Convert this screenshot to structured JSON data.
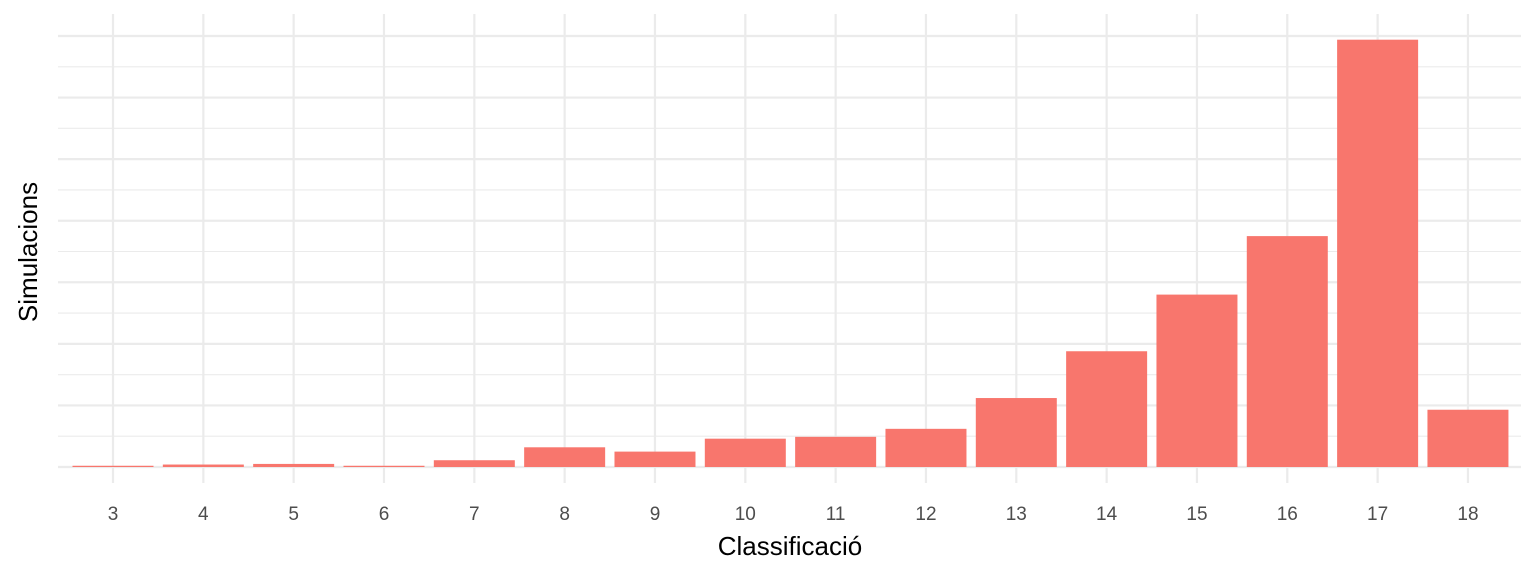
{
  "chart_data": {
    "type": "bar",
    "title": "",
    "xlabel": "Classificació",
    "ylabel": "Simulacions",
    "categories": [
      "3",
      "4",
      "5",
      "6",
      "7",
      "8",
      "9",
      "10",
      "11",
      "12",
      "13",
      "14",
      "15",
      "16",
      "17",
      "18"
    ],
    "values": [
      2,
      4,
      5,
      2,
      11,
      32,
      25,
      46,
      49,
      62,
      112,
      188,
      280,
      375,
      694,
      93
    ],
    "ylim": [
      0,
      700
    ],
    "y_ticks_labeled": false,
    "grid": true,
    "legend": "none",
    "bar_color": "#f8766d"
  }
}
